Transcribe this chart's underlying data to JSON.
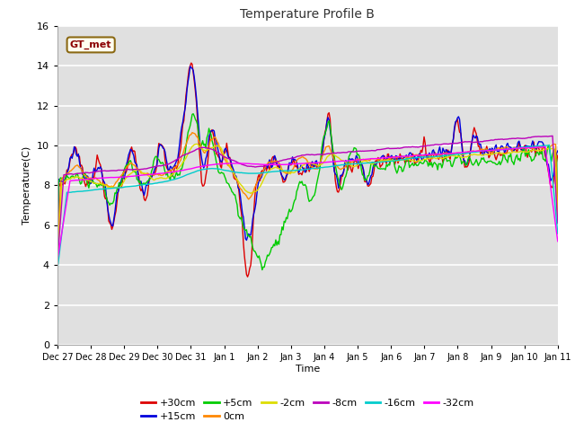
{
  "title": "Temperature Profile B",
  "xlabel": "Time",
  "ylabel": "Temperature(C)",
  "ylim": [
    0,
    16
  ],
  "yticks": [
    0,
    2,
    4,
    6,
    8,
    10,
    12,
    14,
    16
  ],
  "plot_bg_color": "#e0e0e0",
  "fig_bg_color": "#ffffff",
  "grid_color": "#ffffff",
  "annotation_label": "GT_met",
  "annotation_box_facecolor": "#fffff0",
  "annotation_box_edgecolor": "#8b6914",
  "annotation_text_color": "#8b0000",
  "series": [
    {
      "label": "+30cm",
      "color": "#dd0000",
      "lw": 1.0
    },
    {
      "label": "+15cm",
      "color": "#0000dd",
      "lw": 1.0
    },
    {
      "label": "+5cm",
      "color": "#00cc00",
      "lw": 1.0
    },
    {
      "label": "0cm",
      "color": "#ff8800",
      "lw": 1.0
    },
    {
      "label": "-2cm",
      "color": "#dddd00",
      "lw": 1.0
    },
    {
      "label": "-8cm",
      "color": "#bb00bb",
      "lw": 1.0
    },
    {
      "label": "-16cm",
      "color": "#00cccc",
      "lw": 1.0
    },
    {
      "label": "-32cm",
      "color": "#ff00ff",
      "lw": 1.0
    }
  ],
  "xtick_labels": [
    "Dec 27",
    "Dec 28",
    "Dec 29",
    "Dec 30",
    "Dec 31",
    "Jan 1",
    "Jan 2",
    "Jan 3",
    "Jan 4",
    "Jan 5",
    "Jan 6",
    "Jan 7",
    "Jan 8",
    "Jan 9",
    "Jan 10",
    "Jan 11"
  ],
  "n_points": 480
}
